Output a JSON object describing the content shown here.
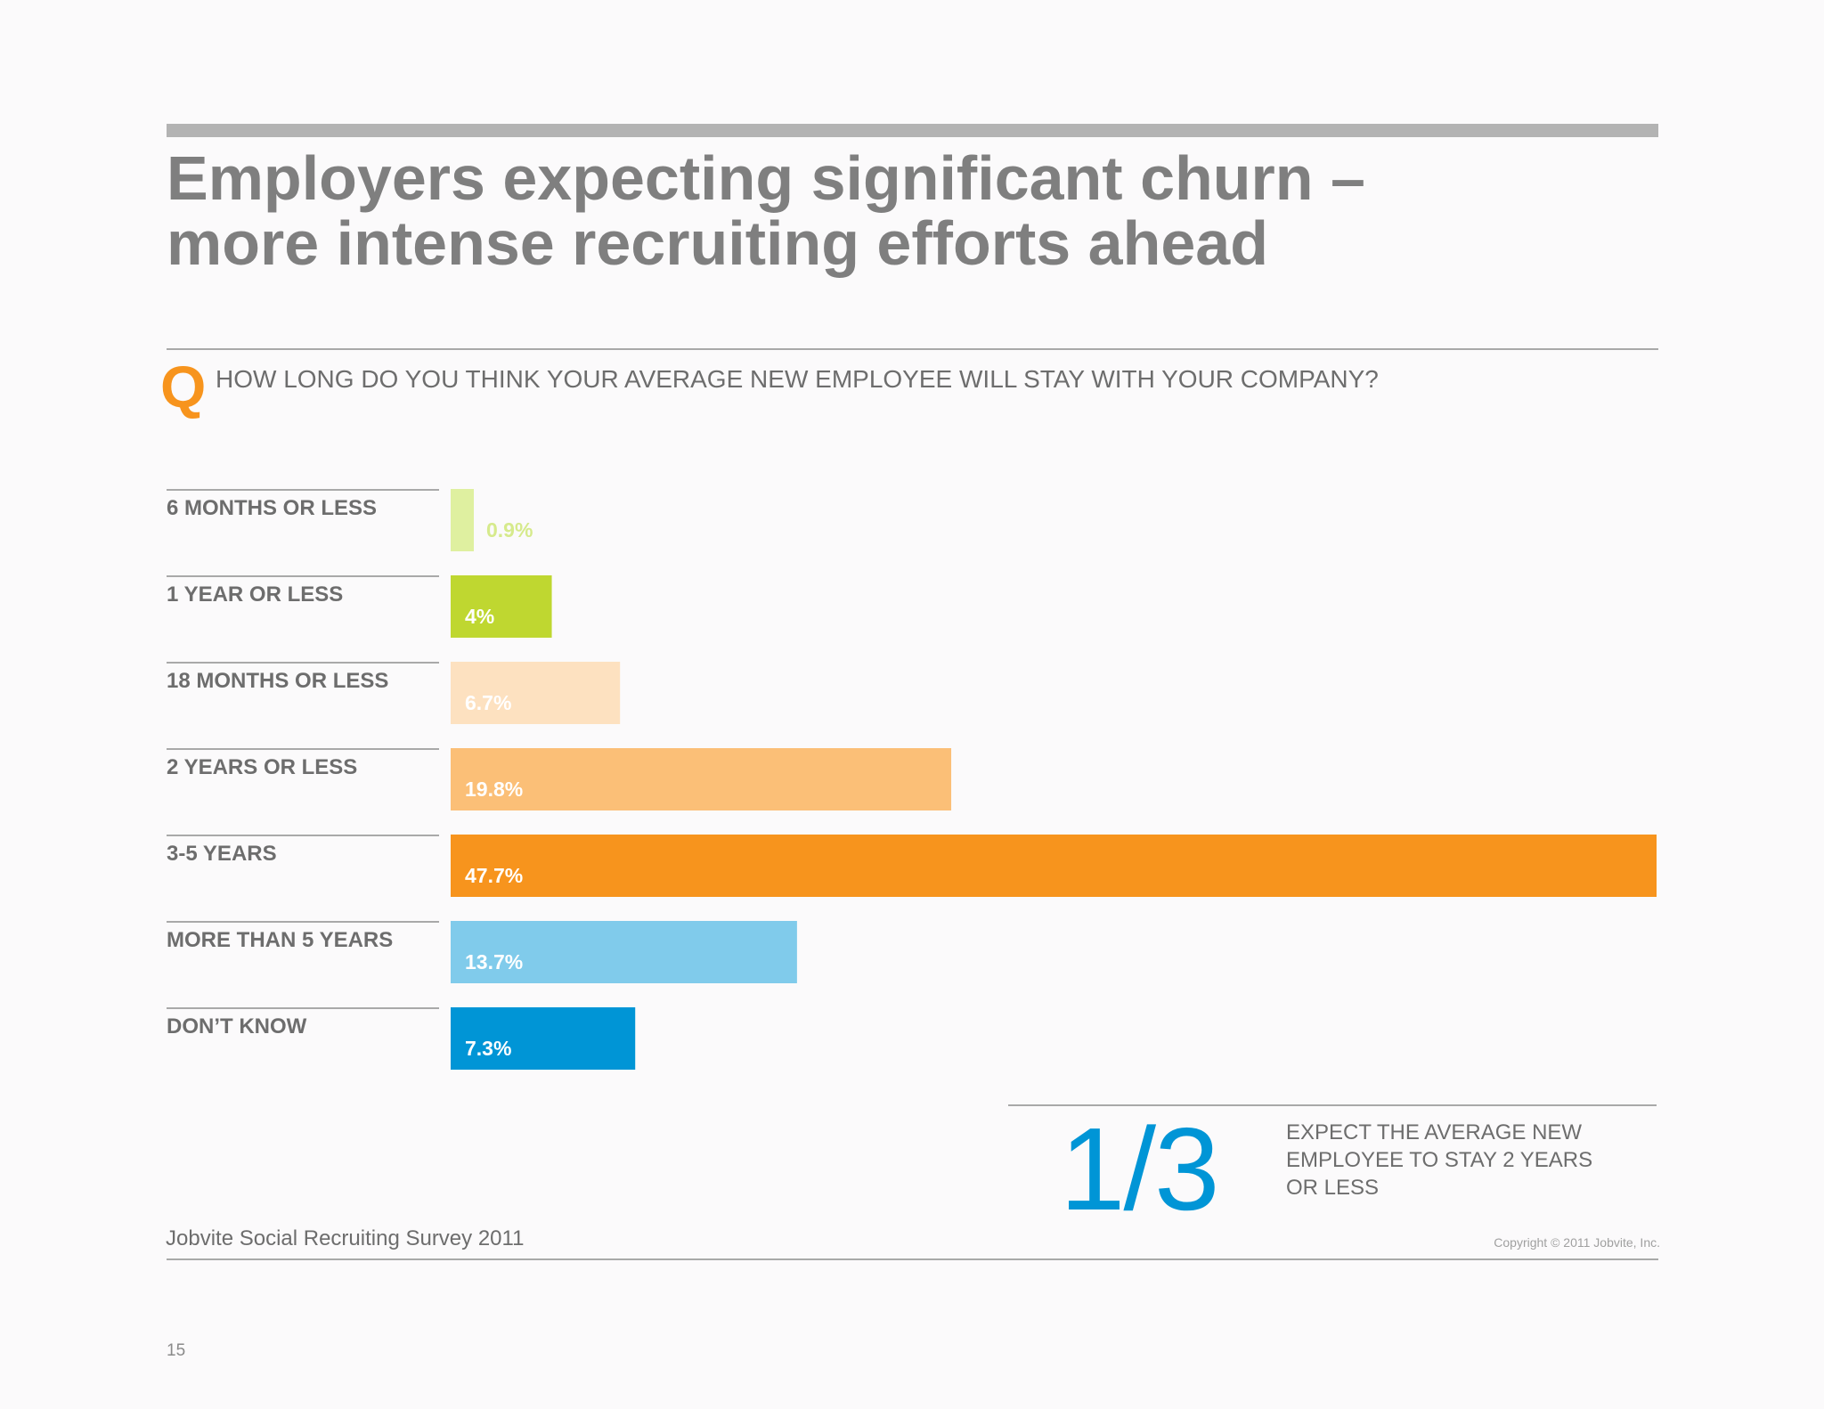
{
  "header": {
    "title_line1": "Employers expecting significant churn –",
    "title_line2": "more intense recruiting efforts ahead"
  },
  "question": {
    "mark": "Q",
    "text": "HOW LONG DO YOU THINK YOUR AVERAGE NEW EMPLOYEE WILL STAY WITH YOUR COMPANY?"
  },
  "chart_data": {
    "type": "bar",
    "orientation": "horizontal",
    "categories": [
      "6 MONTHS OR LESS",
      "1 YEAR OR LESS",
      "18 MONTHS OR LESS",
      "2 YEARS OR LESS",
      "3-5 YEARS",
      "MORE THAN 5 YEARS",
      "DON’T KNOW"
    ],
    "values": [
      0.9,
      4,
      6.7,
      19.8,
      47.7,
      13.7,
      7.3
    ],
    "value_labels": [
      "0.9%",
      "4%",
      "6.7%",
      "19.8%",
      "47.7%",
      "13.7%",
      "7.3%"
    ],
    "colors": [
      "#dff0a0",
      "#bfd730",
      "#fde1c0",
      "#fbbf77",
      "#f7941d",
      "#80cbeb",
      "#0095d6"
    ],
    "label_colors": [
      "#d6ea8c",
      "#ffffff",
      "#ffffff",
      "#ffffff",
      "#ffffff",
      "#ffffff",
      "#ffffff"
    ],
    "xlim": [
      0,
      47.7
    ]
  },
  "stat": {
    "big": "1/3",
    "line1": "EXPECT THE AVERAGE NEW",
    "line2": "EMPLOYEE TO STAY 2 YEARS",
    "line3": "OR LESS"
  },
  "footer": {
    "source": "Jobvite Social Recruiting Survey 2011",
    "copyright": "Copyright © 2011 Jobvite, Inc.",
    "page_number": "15"
  }
}
